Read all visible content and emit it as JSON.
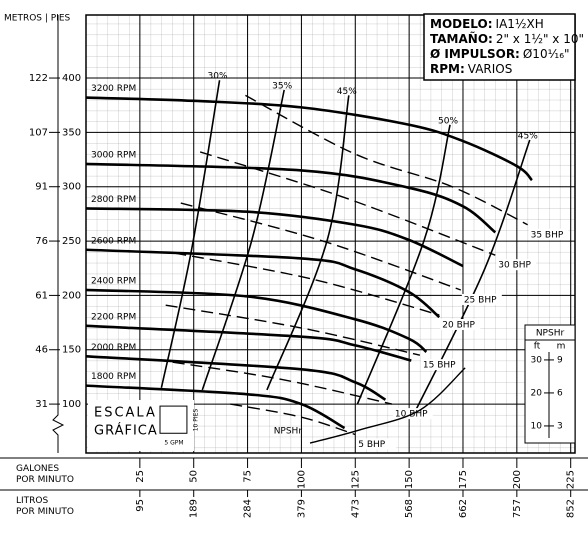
{
  "chart_data": {
    "type": "line",
    "corner_label": "METROS | PIES",
    "x_label_gpm": "GALONES\nPOR MINUTO",
    "x_label_lpm": "LITROS\nPOR MINUTO",
    "color": "#000000",
    "grid": true,
    "xlim": [
      0,
      227
    ],
    "ylim": [
      55,
      458
    ],
    "y2lim": [
      1.8,
      134.5
    ],
    "xticks": [
      25,
      50,
      75,
      100,
      125,
      150,
      175,
      200,
      225
    ],
    "xticks_lpm": [
      {
        "value": 25,
        "label": "95"
      },
      {
        "value": 50,
        "label": "189"
      },
      {
        "value": 75,
        "label": "284"
      },
      {
        "value": 100,
        "label": "379"
      },
      {
        "value": 125,
        "label": "473"
      },
      {
        "value": 150,
        "label": "568"
      },
      {
        "value": 175,
        "label": "662"
      },
      {
        "value": 200,
        "label": "757"
      },
      {
        "value": 225,
        "label": "852"
      }
    ],
    "yticks": [
      100,
      150,
      200,
      250,
      300,
      350,
      400
    ],
    "yticks_m": [
      {
        "value": 100,
        "label": "31"
      },
      {
        "value": 150,
        "label": "46"
      },
      {
        "value": 200,
        "label": "61"
      },
      {
        "value": 250,
        "label": "76"
      },
      {
        "value": 300,
        "label": "91"
      },
      {
        "value": 350,
        "label": "107"
      },
      {
        "value": 400,
        "label": "122"
      }
    ],
    "header": [
      {
        "label": "MODELO:",
        "value": "IA1½XH"
      },
      {
        "label": "TAMAÑO:",
        "value": "2\" x 1½\" x 10\""
      },
      {
        "label": "Ø IMPULSOR:",
        "value": "Ø10¹⁄₁₆\""
      },
      {
        "label": "RPM:",
        "value": "VARIOS"
      }
    ],
    "scale_box": {
      "title1": "ESCALA",
      "title2": "GRÁFICA",
      "height_label": "10 PIES",
      "width_label": "5 GPM"
    },
    "head_curves": [
      {
        "name": "3200 RPM",
        "x": [
          0,
          50,
          100,
          150,
          175,
          200,
          207
        ],
        "values": [
          382,
          379,
          373,
          357,
          342,
          319,
          306
        ]
      },
      {
        "name": "3000 RPM",
        "x": [
          0,
          100,
          150,
          175,
          190
        ],
        "values": [
          321,
          315,
          299,
          282,
          258
        ]
      },
      {
        "name": "2800 RPM",
        "x": [
          0,
          75,
          125,
          150,
          175
        ],
        "values": [
          280,
          277,
          265,
          251,
          227
        ]
      },
      {
        "name": "2600 RPM",
        "x": [
          0,
          100,
          125,
          150,
          164
        ],
        "values": [
          242,
          234,
          224,
          203,
          180
        ]
      },
      {
        "name": "2400 RPM",
        "x": [
          0,
          75,
          125,
          150,
          158
        ],
        "values": [
          205,
          199,
          178,
          160,
          148
        ]
      },
      {
        "name": "2200 RPM",
        "x": [
          0,
          100,
          125,
          151
        ],
        "values": [
          172,
          162,
          154,
          140
        ]
      },
      {
        "name": "2000 RPM",
        "x": [
          0,
          100,
          125,
          139
        ],
        "values": [
          144,
          132,
          120,
          104
        ]
      },
      {
        "name": "1800 RPM",
        "x": [
          0,
          75,
          100,
          120
        ],
        "values": [
          117,
          109,
          100,
          78
        ]
      }
    ],
    "efficiency_curves": [
      {
        "name": "30%",
        "x": [
          35,
          49,
          62
        ],
        "values": [
          115,
          242,
          398
        ]
      },
      {
        "name": "35%",
        "x": [
          54,
          77,
          92
        ],
        "values": [
          113,
          251,
          389
        ]
      },
      {
        "name": "45%",
        "x": [
          84,
          112,
          122
        ],
        "values": [
          113,
          251,
          384
        ]
      },
      {
        "name": "50%",
        "x": [
          126,
          157,
          169
        ],
        "values": [
          100,
          251,
          357
        ]
      },
      {
        "name": "45%",
        "x": [
          152,
          185,
          206
        ],
        "values": [
          90,
          224,
          343
        ]
      }
    ],
    "power_curves": [
      {
        "name": "35 BHP",
        "x": [
          74,
          125,
          170,
          205
        ],
        "values": [
          384,
          330,
          300,
          265
        ]
      },
      {
        "name": "30 BHP",
        "x": [
          53,
          120,
          190
        ],
        "values": [
          332,
          290,
          237
        ]
      },
      {
        "name": "25 BHP",
        "x": [
          44,
          110,
          174
        ],
        "values": [
          285,
          250,
          205
        ]
      },
      {
        "name": "20 BHP",
        "x": [
          41,
          105,
          164
        ],
        "values": [
          239,
          215,
          182
        ]
      },
      {
        "name": "15 BHP",
        "x": [
          37,
          100,
          155
        ],
        "values": [
          191,
          170,
          145
        ]
      },
      {
        "name": "10 BHP",
        "x": [
          32,
          90,
          142
        ],
        "values": [
          141,
          123,
          100
        ]
      },
      {
        "name": "5 BHP",
        "x": [
          67,
          100,
          125
        ],
        "values": [
          100,
          88,
          72
        ]
      }
    ],
    "npshr_curve": {
      "name": "NPSHr",
      "axis": "y2",
      "x": [
        104,
        127,
        155,
        176
      ],
      "values": [
        4.8,
        8.8,
        14.8,
        27.6
      ]
    },
    "npshr_box": {
      "title": "NPSHr",
      "unit_ft": "ft",
      "unit_m": "m"
    },
    "y2ticks": [
      10,
      20,
      30
    ],
    "y2ticks_m": [
      {
        "value": 10,
        "label": "3"
      },
      {
        "value": 20,
        "label": "6"
      },
      {
        "value": 30,
        "label": "9"
      }
    ]
  }
}
